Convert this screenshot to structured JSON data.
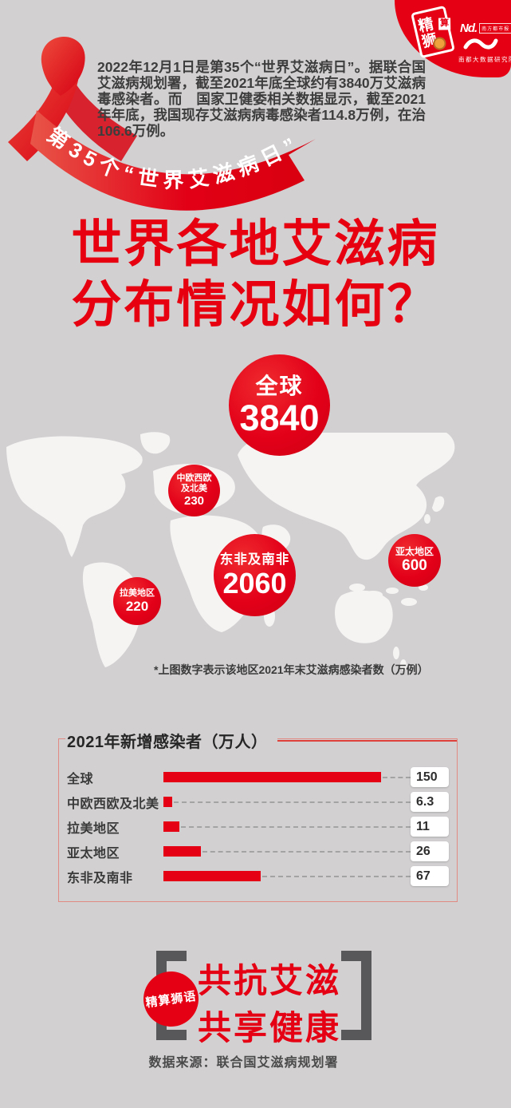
{
  "colors": {
    "background": "#d2d0d1",
    "accent_red": "#e60013",
    "bracket_gray": "#58585a",
    "map_land": "#f7f6f5"
  },
  "header": {
    "intro_text": "2022年12月1日是第35个“世界艾滋病日”。据联合国艾滋病规划署，截至2021年底全球约有3840万艾滋病毒感染者。而　国家卫健委相关数据显示，截至2021年年底，我国现存艾滋病病毒感染者114.8万例，在治106.6万例。",
    "ribbon_banner_text": "第35个“世界艾滋病日”"
  },
  "brand": {
    "stamp_text_jing": "精",
    "stamp_text_suan": "算",
    "stamp_text_shi": "狮",
    "nd_logo_text": "Nd.",
    "nd_tagline": "南方都市报",
    "institute_name": "南都大数据研究院"
  },
  "title": {
    "line1": "世界各地艾滋病",
    "line2": "分布情况如何？"
  },
  "chart_data": [
    {
      "type": "bubble-map",
      "title": "世界各地艾滋病分布情况如何？",
      "unit": "万例",
      "note": "*上图数字表示该地区2021年末艾滋病感染者数（万例）",
      "points": [
        {
          "region": "全球",
          "value": 3840
        },
        {
          "region": "中欧西欧及北美",
          "value": 230
        },
        {
          "region": "东非及南非",
          "value": 2060
        },
        {
          "region": "亚太地区",
          "value": 600
        },
        {
          "region": "拉美地区",
          "value": 220
        }
      ]
    },
    {
      "type": "bar",
      "orientation": "horizontal",
      "title": "2021年新增感染者（万人）",
      "categories": [
        "全球",
        "中欧西欧及北美",
        "拉美地区",
        "亚太地区",
        "东非及南非"
      ],
      "values": [
        150,
        6.3,
        11,
        26,
        67
      ],
      "xlim": [
        0,
        150
      ],
      "bar_color": "#e60014",
      "grid": false,
      "legend": false
    }
  ],
  "footer": {
    "badge_text": "精算狮语",
    "slogan_line1": "共抗艾滋",
    "slogan_line2": "共享健康",
    "source_text": "数据来源：联合国艾滋病规划署"
  }
}
